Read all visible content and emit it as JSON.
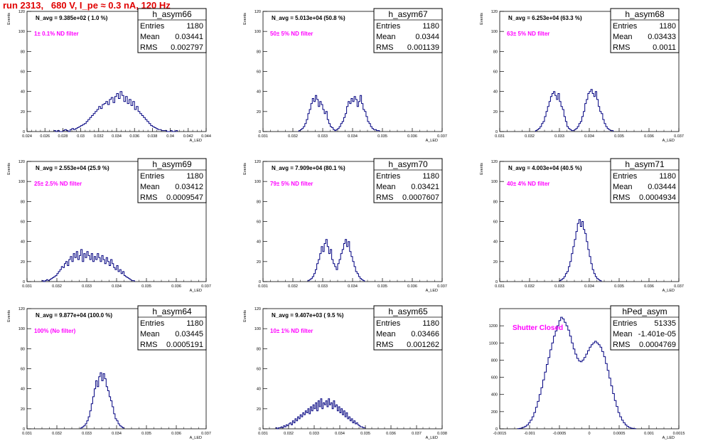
{
  "title": "run 2313,   680 V, I_pe ≈ 0.3 nA, 120 Hz",
  "chart_data": [
    {
      "type": "histogram",
      "name": "h_asym66",
      "note": "N_avg = 9.385e+02 ( 1.0 %)",
      "filter": "1± 0.1% ND filter",
      "stats": {
        "entries": "1180",
        "mean": "0.03441",
        "rms": "0.002797"
      },
      "ylabel": "Events",
      "xlabel": "A_LED",
      "xlim": [
        0.024,
        0.044
      ],
      "ylim": [
        0,
        120
      ],
      "xticks": [
        0.024,
        0.026,
        0.028,
        0.03,
        0.032,
        0.034,
        0.036,
        0.038,
        0.04,
        0.042,
        0.044
      ],
      "xticklabels": [
        "0.024",
        "0.026",
        "0.028",
        "0.03",
        "0.032",
        "0.034",
        "0.036",
        "0.038",
        "0.04",
        "0.042",
        "0.044"
      ],
      "yticks": [
        0,
        20,
        40,
        60,
        80,
        100,
        120
      ],
      "bins": {
        "start": 0.027,
        "width": 0.0002,
        "values": [
          1,
          0,
          1,
          0,
          0,
          1,
          2,
          1,
          0,
          2,
          3,
          2,
          3,
          4,
          5,
          6,
          7,
          8,
          10,
          12,
          14,
          16,
          18,
          20,
          22,
          25,
          23,
          27,
          28,
          30,
          27,
          32,
          34,
          29,
          35,
          38,
          33,
          40,
          36,
          30,
          35,
          28,
          32,
          26,
          30,
          22,
          25,
          20,
          18,
          16,
          14,
          12,
          10,
          8,
          6,
          5,
          4,
          3,
          2,
          2,
          1,
          1,
          1,
          0,
          0,
          1,
          0,
          0,
          1
        ]
      }
    },
    {
      "type": "histogram",
      "name": "h_asym67",
      "note": "N_avg = 5.013e+04 (50.8 %)",
      "filter": "50± 5% ND filter",
      "stats": {
        "entries": "1180",
        "mean": "0.0344",
        "rms": "0.001139"
      },
      "ylabel": "Events",
      "xlabel": "A_LED",
      "xlim": [
        0.031,
        0.037
      ],
      "ylim": [
        0,
        120
      ],
      "xticks": [
        0.031,
        0.032,
        0.033,
        0.034,
        0.035,
        0.036,
        0.037
      ],
      "xticklabels": [
        "0.031",
        "0.032",
        "0.033",
        "0.034",
        "0.035",
        "0.036",
        "0.037"
      ],
      "yticks": [
        0,
        20,
        40,
        60,
        80,
        100,
        120
      ],
      "bins": {
        "start": 0.0322,
        "width": 5e-05,
        "values": [
          1,
          2,
          3,
          5,
          8,
          12,
          18,
          22,
          28,
          33,
          30,
          36,
          32,
          25,
          30,
          27,
          22,
          18,
          20,
          12,
          8,
          5,
          4,
          2,
          1,
          2,
          3,
          5,
          8,
          10,
          14,
          18,
          25,
          30,
          28,
          33,
          30,
          35,
          32,
          25,
          30,
          36,
          28,
          22,
          20,
          15,
          10,
          8,
          5,
          3,
          2,
          2,
          1,
          1
        ]
      }
    },
    {
      "type": "histogram",
      "name": "h_asym68",
      "note": "N_avg = 6.253e+04 (63.3 %)",
      "filter": "63± 5% ND filter",
      "stats": {
        "entries": "1180",
        "mean": "0.03433",
        "rms": "0.0011"
      },
      "ylabel": "Events",
      "xlabel": "A_LED",
      "xlim": [
        0.031,
        0.037
      ],
      "ylim": [
        0,
        120
      ],
      "xticks": [
        0.031,
        0.032,
        0.033,
        0.034,
        0.035,
        0.036,
        0.037
      ],
      "xticklabels": [
        "0.031",
        "0.032",
        "0.033",
        "0.034",
        "0.035",
        "0.036",
        "0.037"
      ],
      "yticks": [
        0,
        20,
        40,
        60,
        80,
        100,
        120
      ],
      "bins": {
        "start": 0.0322,
        "width": 5e-05,
        "values": [
          1,
          2,
          3,
          5,
          8,
          10,
          15,
          20,
          25,
          30,
          35,
          38,
          40,
          36,
          32,
          38,
          30,
          25,
          22,
          15,
          10,
          5,
          3,
          2,
          1,
          1,
          2,
          3,
          5,
          8,
          10,
          15,
          20,
          28,
          32,
          38,
          40,
          42,
          38,
          35,
          40,
          32,
          25,
          20,
          18,
          12,
          8,
          5,
          3,
          2,
          1,
          1
        ]
      }
    },
    {
      "type": "histogram",
      "name": "h_asym69",
      "note": "N_avg = 2.553e+04 (25.9 %)",
      "filter": "25± 2.5% ND filter",
      "stats": {
        "entries": "1180",
        "mean": "0.03412",
        "rms": "0.0009547"
      },
      "ylabel": "Events",
      "xlabel": "A_LED",
      "xlim": [
        0.031,
        0.037
      ],
      "ylim": [
        0,
        120
      ],
      "xticks": [
        0.031,
        0.032,
        0.033,
        0.034,
        0.035,
        0.036,
        0.037
      ],
      "xticklabels": [
        "0.031",
        "0.032",
        "0.033",
        "0.034",
        "0.035",
        "0.036",
        "0.037"
      ],
      "yticks": [
        0,
        20,
        40,
        60,
        80,
        100,
        120
      ],
      "bins": {
        "start": 0.0315,
        "width": 5e-05,
        "values": [
          1,
          0,
          1,
          2,
          1,
          2,
          3,
          4,
          5,
          6,
          8,
          10,
          12,
          15,
          14,
          18,
          20,
          16,
          22,
          25,
          20,
          28,
          24,
          30,
          22,
          26,
          32,
          20,
          28,
          24,
          30,
          26,
          22,
          28,
          20,
          25,
          22,
          28,
          24,
          20,
          26,
          22,
          18,
          24,
          20,
          16,
          22,
          18,
          14,
          12,
          16,
          10,
          12,
          8,
          10,
          6,
          5,
          4,
          3,
          2,
          1,
          1
        ]
      }
    },
    {
      "type": "histogram",
      "name": "h_asym70",
      "note": "N_avg = 7.909e+04 (80.1 %)",
      "filter": "79± 5% ND filter",
      "stats": {
        "entries": "1180",
        "mean": "0.03421",
        "rms": "0.0007607"
      },
      "ylabel": "Events",
      "xlabel": "A_LED",
      "xlim": [
        0.031,
        0.037
      ],
      "ylim": [
        0,
        120
      ],
      "xticks": [
        0.031,
        0.032,
        0.033,
        0.034,
        0.035,
        0.036,
        0.037
      ],
      "xticklabels": [
        "0.031",
        "0.032",
        "0.033",
        "0.034",
        "0.035",
        "0.036",
        "0.037"
      ],
      "yticks": [
        0,
        20,
        40,
        60,
        80,
        100,
        120
      ],
      "bins": {
        "start": 0.0325,
        "width": 5e-05,
        "values": [
          1,
          2,
          3,
          5,
          8,
          12,
          18,
          22,
          28,
          35,
          30,
          38,
          42,
          35,
          28,
          32,
          22,
          18,
          15,
          12,
          18,
          22,
          28,
          32,
          38,
          42,
          35,
          40,
          30,
          25,
          20,
          15,
          10,
          8,
          5,
          3,
          2,
          1
        ]
      }
    },
    {
      "type": "histogram",
      "name": "h_asym71",
      "note": "N_avg = 4.003e+04 (40.5 %)",
      "filter": "40± 4% ND filter",
      "stats": {
        "entries": "1180",
        "mean": "0.03444",
        "rms": "0.0004934"
      },
      "ylabel": "Events",
      "xlabel": "A_LED",
      "xlim": [
        0.031,
        0.037
      ],
      "ylim": [
        0,
        120
      ],
      "xticks": [
        0.031,
        0.032,
        0.033,
        0.034,
        0.035,
        0.036,
        0.037
      ],
      "xticklabels": [
        "0.031",
        "0.032",
        "0.033",
        "0.034",
        "0.035",
        "0.036",
        "0.037"
      ],
      "yticks": [
        0,
        20,
        40,
        60,
        80,
        100,
        120
      ],
      "bins": {
        "start": 0.033,
        "width": 5e-05,
        "values": [
          1,
          2,
          3,
          5,
          8,
          10,
          15,
          20,
          28,
          35,
          42,
          50,
          58,
          62,
          55,
          60,
          52,
          48,
          40,
          32,
          25,
          18,
          12,
          8,
          5,
          3,
          2,
          1
        ]
      }
    },
    {
      "type": "histogram",
      "name": "h_asym64",
      "note": "N_avg = 9.877e+04 (100.0 %)",
      "filter": "100% (No filter)",
      "stats": {
        "entries": "1180",
        "mean": "0.03445",
        "rms": "0.0005191"
      },
      "ylabel": "Events",
      "xlabel": "A_LED",
      "xlim": [
        0.031,
        0.037
      ],
      "ylim": [
        0,
        120
      ],
      "xticks": [
        0.031,
        0.032,
        0.033,
        0.034,
        0.035,
        0.036,
        0.037
      ],
      "xticklabels": [
        "0.031",
        "0.032",
        "0.033",
        "0.034",
        "0.035",
        "0.036",
        "0.037"
      ],
      "yticks": [
        0,
        20,
        40,
        60,
        80,
        100,
        120
      ],
      "bins": {
        "start": 0.0328,
        "width": 5e-05,
        "values": [
          1,
          2,
          3,
          5,
          8,
          12,
          18,
          25,
          32,
          40,
          48,
          42,
          52,
          56,
          48,
          55,
          50,
          42,
          38,
          32,
          28,
          22,
          15,
          10,
          8,
          5,
          3,
          2,
          1
        ]
      }
    },
    {
      "type": "histogram",
      "name": "h_asym65",
      "note": "N_avg = 9.407e+03 ( 9.5 %)",
      "filter": "10± 1% ND filter",
      "stats": {
        "entries": "1180",
        "mean": "0.03466",
        "rms": "0.001262"
      },
      "ylabel": "Events",
      "xlabel": "A_LED",
      "xlim": [
        0.031,
        0.038
      ],
      "ylim": [
        0,
        120
      ],
      "xticks": [
        0.031,
        0.032,
        0.033,
        0.034,
        0.035,
        0.036,
        0.037,
        0.038
      ],
      "xticklabels": [
        "0.031",
        "0.032",
        "0.033",
        "0.034",
        "0.035",
        "0.036",
        "0.037",
        "0.038"
      ],
      "yticks": [
        0,
        20,
        40,
        60,
        80,
        100,
        120
      ],
      "bins": {
        "start": 0.0315,
        "width": 5e-05,
        "values": [
          1,
          0,
          1,
          1,
          2,
          1,
          3,
          2,
          4,
          3,
          5,
          6,
          4,
          8,
          6,
          10,
          8,
          12,
          10,
          14,
          12,
          16,
          14,
          18,
          16,
          20,
          15,
          22,
          18,
          24,
          20,
          26,
          18,
          28,
          22,
          30,
          20,
          26,
          24,
          28,
          22,
          30,
          24,
          26,
          20,
          28,
          22,
          24,
          18,
          22,
          16,
          20,
          14,
          18,
          12,
          16,
          10,
          12,
          8,
          10,
          6,
          8,
          5,
          6,
          4,
          3,
          2,
          2,
          1,
          1
        ]
      }
    },
    {
      "type": "histogram",
      "name": "hPed_asym",
      "note": "Shutter Closed",
      "filter": "",
      "stats": {
        "entries": "51335",
        "mean": "-1.401e-05",
        "rms": "0.0004769"
      },
      "ylabel": "",
      "xlabel": "A_LED",
      "xlim": [
        -0.0015,
        0.0015
      ],
      "ylim": [
        0,
        1400
      ],
      "xticks": [
        -0.0015,
        -0.001,
        -0.0005,
        0,
        0.0005,
        0.001,
        0.0015
      ],
      "xticklabels": [
        "-0.0015",
        "-0.001",
        "-0.0005",
        "0",
        "0.0005",
        "0.001",
        "0.0015"
      ],
      "yticks": [
        0,
        200,
        400,
        600,
        800,
        1000,
        1200
      ],
      "bins": {
        "start": -0.0012,
        "width": 3e-05,
        "values": [
          2,
          5,
          10,
          18,
          30,
          45,
          70,
          100,
          140,
          190,
          250,
          320,
          400,
          480,
          570,
          660,
          750,
          830,
          920,
          1000,
          1080,
          1140,
          1200,
          1260,
          1300,
          1280,
          1240,
          1200,
          1150,
          1080,
          1000,
          930,
          870,
          820,
          790,
          780,
          800,
          830,
          870,
          910,
          950,
          980,
          1000,
          1020,
          1000,
          980,
          950,
          900,
          840,
          760,
          680,
          590,
          500,
          410,
          330,
          260,
          190,
          140,
          100,
          70,
          45,
          28,
          16,
          8,
          4,
          2
        ]
      }
    }
  ]
}
